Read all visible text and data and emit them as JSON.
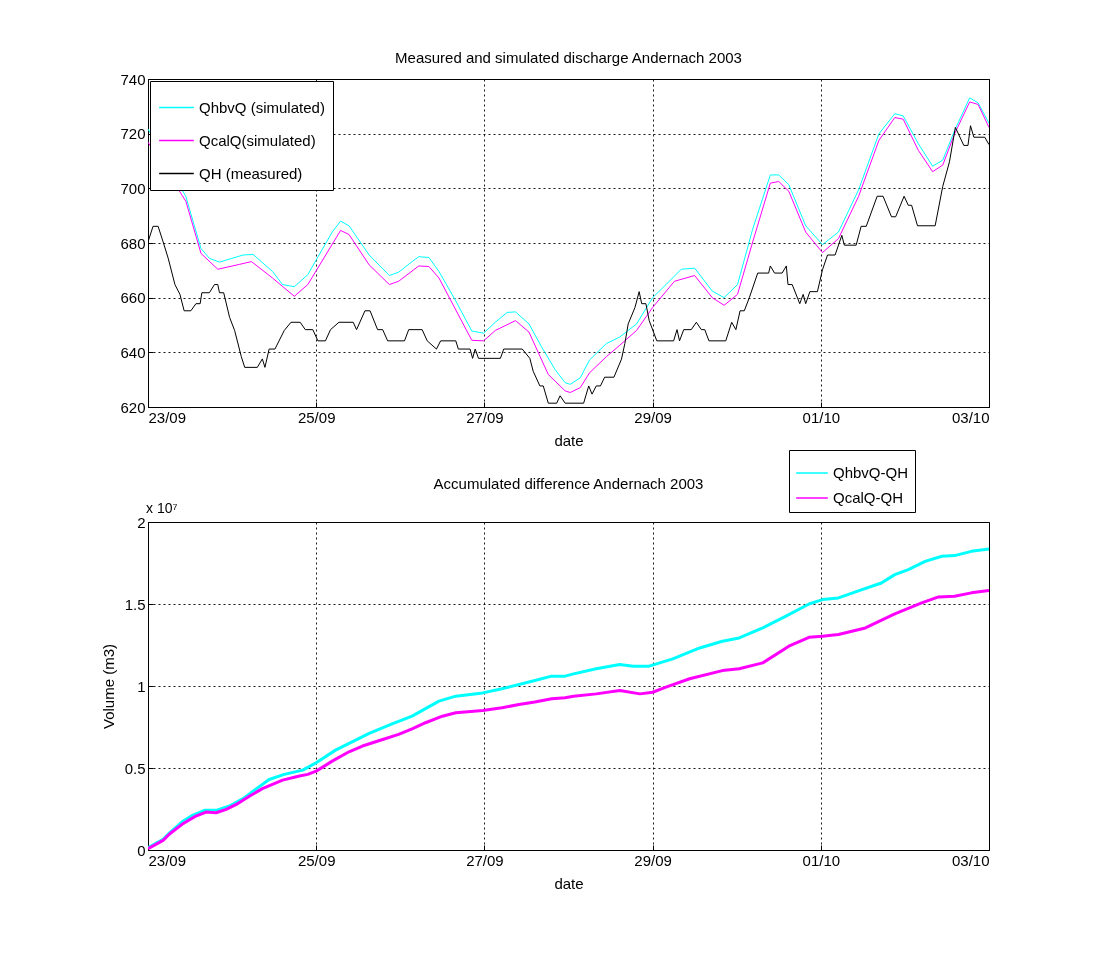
{
  "chart_data": [
    {
      "type": "line",
      "title": "Measured and simulated discharge Andernach 2003",
      "xlabel": "date",
      "xlim": [
        "2003-09-23",
        "2003-10-03"
      ],
      "xticks": [
        {
          "value": "2003-09-23",
          "label": "23/09"
        },
        {
          "value": "2003-09-25",
          "label": "25/09"
        },
        {
          "value": "2003-09-27",
          "label": "27/09"
        },
        {
          "value": "2003-09-29",
          "label": "29/09"
        },
        {
          "value": "2003-10-01",
          "label": "01/10"
        },
        {
          "value": "2003-10-03",
          "label": "03/10"
        }
      ],
      "ylim": [
        620,
        740
      ],
      "yticks": [
        620,
        640,
        660,
        680,
        700,
        720,
        740
      ],
      "grid": true,
      "legend": "top left",
      "series": [
        {
          "name": "QhbvQ (simulated)",
          "color": "#00ffff",
          "x": [
            "2003-09-23T00:00",
            "2003-09-23T10:48",
            "2003-09-23T15:07",
            "2003-09-23T17:31",
            "2003-09-23T20:24",
            "2003-09-24T03:07",
            "2003-09-24T06:00",
            "2003-09-24T11:31",
            "2003-09-24T14:24",
            "2003-09-24T17:46",
            "2003-09-24T21:36",
            "2003-09-25T00:00",
            "2003-09-25T04:34",
            "2003-09-25T06:58",
            "2003-09-25T09:22",
            "2003-09-25T15:07",
            "2003-09-25T20:53",
            "2003-09-25T23:31",
            "2003-09-26T03:22",
            "2003-09-26T05:17",
            "2003-09-26T08:10",
            "2003-09-26T11:02",
            "2003-09-26T15:50",
            "2003-09-26T20:24",
            "2003-09-26T23:46",
            "2003-09-27T03:07",
            "2003-09-27T06:29",
            "2003-09-27T08:53",
            "2003-09-27T12:43",
            "2003-09-27T16:19",
            "2003-09-27T20:10",
            "2003-09-27T23:02",
            "2003-09-28T00:29",
            "2003-09-28T03:22",
            "2003-09-28T06:00",
            "2003-09-28T10:48",
            "2003-09-28T14:38",
            "2003-09-28T19:26",
            "2003-09-29T00:00",
            "2003-09-29T03:50",
            "2003-09-29T08:10",
            "2003-09-29T12:00",
            "2003-09-29T17:02",
            "2003-09-29T20:24",
            "2003-09-30T00:14",
            "2003-09-30T04:34",
            "2003-09-30T09:36",
            "2003-09-30T12:00",
            "2003-09-30T14:53",
            "2003-09-30T19:41",
            "2003-10-01T00:29",
            "2003-10-01T05:02",
            "2003-10-01T10:48",
            "2003-10-01T16:34",
            "2003-10-01T21:07",
            "2003-10-01T23:31",
            "2003-10-02T03:50",
            "2003-10-02T07:55",
            "2003-10-02T10:48",
            "2003-10-02T14:10",
            "2003-10-02T18:29",
            "2003-10-02T20:53",
            "2003-10-03T00:00"
          ],
          "values": [
            721.7,
            697,
            678,
            674.4,
            673,
            675.6,
            675.8,
            669.6,
            664.8,
            664,
            668.4,
            673.8,
            684,
            688,
            686.3,
            675.6,
            668.1,
            669.3,
            673.2,
            675,
            674.7,
            669.6,
            658.8,
            647.8,
            647,
            651,
            654.6,
            654.8,
            650.4,
            642,
            633.7,
            628.9,
            628.3,
            630.7,
            637.2,
            643.2,
            645.6,
            650.4,
            660,
            664.8,
            670.4,
            670.8,
            662.4,
            660,
            664.8,
            685.1,
            704.9,
            704.9,
            701.3,
            686.3,
            679.4,
            684,
            699.5,
            719.9,
            727.3,
            726.5,
            716.3,
            708.1,
            710.3,
            721.1,
            733.1,
            731.3,
            723.8
          ]
        },
        {
          "name": "QcalQ(simulated)",
          "color": "#ff00ff",
          "x": [
            "2003-09-23T00:00",
            "2003-09-23T10:48",
            "2003-09-23T15:07",
            "2003-09-23T19:55",
            "2003-09-24T02:10",
            "2003-09-24T05:31",
            "2003-09-24T11:31",
            "2003-09-24T17:46",
            "2003-09-24T21:36",
            "2003-09-25T06:58",
            "2003-09-25T09:22",
            "2003-09-25T15:07",
            "2003-09-25T20:53",
            "2003-09-25T23:31",
            "2003-09-26T05:17",
            "2003-09-26T08:10",
            "2003-09-26T11:02",
            "2003-09-26T20:24",
            "2003-09-26T23:46",
            "2003-09-27T03:07",
            "2003-09-27T08:53",
            "2003-09-27T12:43",
            "2003-09-27T18:14",
            "2003-09-27T23:02",
            "2003-09-28T00:29",
            "2003-09-28T03:22",
            "2003-09-28T06:00",
            "2003-09-28T10:48",
            "2003-09-28T14:38",
            "2003-09-28T19:26",
            "2003-09-29T00:00",
            "2003-09-29T06:14",
            "2003-09-29T12:00",
            "2003-09-29T17:02",
            "2003-09-29T20:24",
            "2003-09-30T00:14",
            "2003-09-30T04:34",
            "2003-09-30T09:36",
            "2003-09-30T12:00",
            "2003-09-30T14:53",
            "2003-09-30T19:41",
            "2003-10-01T00:29",
            "2003-10-01T05:02",
            "2003-10-01T10:48",
            "2003-10-01T16:34",
            "2003-10-01T21:07",
            "2003-10-01T23:31",
            "2003-10-02T03:50",
            "2003-10-02T07:55",
            "2003-10-02T10:48",
            "2003-10-02T14:10",
            "2003-10-02T18:29",
            "2003-10-02T20:53",
            "2003-10-03T00:00"
          ],
          "values": [
            716.9,
            695.3,
            676.2,
            670.4,
            672.2,
            673.2,
            667.2,
            660.5,
            664.8,
            684.6,
            683.1,
            672,
            664.8,
            666,
            671.6,
            671.4,
            667.2,
            644.4,
            644.2,
            648,
            651.6,
            647.4,
            631.9,
            625.9,
            625.3,
            627.1,
            632.5,
            638.4,
            642.6,
            648,
            656.4,
            666,
            668.1,
            660,
            657.2,
            661.2,
            680.4,
            701.9,
            702.5,
            698.9,
            684,
            676.5,
            681.6,
            697.1,
            717.5,
            725.9,
            725.3,
            713.9,
            706.1,
            708.5,
            719.9,
            731.6,
            730.7,
            722.3
          ]
        },
        {
          "name": "QH (measured)",
          "color": "#000000",
          "x": [
            "2003-09-23T00:00",
            "2003-09-23T01:26",
            "2003-09-23T02:53",
            "2003-09-23T04:19",
            "2003-09-23T05:46",
            "2003-09-23T07:41",
            "2003-09-23T09:07",
            "2003-09-23T10:19",
            "2003-09-23T12:14",
            "2003-09-23T13:41",
            "2003-09-23T14:53",
            "2003-09-23T15:22",
            "2003-09-23T17:31",
            "2003-09-23T18:58",
            "2003-09-23T19:55",
            "2003-09-23T20:24",
            "2003-09-23T21:36",
            "2003-09-23T23:17",
            "2003-09-24T00:43",
            "2003-09-24T02:38",
            "2003-09-24T03:36",
            "2003-09-24T07:12",
            "2003-09-24T08:38",
            "2003-09-24T09:22",
            "2003-09-24T10:34",
            "2003-09-24T12:14",
            "2003-09-24T14:53",
            "2003-09-24T16:48",
            "2003-09-24T19:26",
            "2003-09-24T20:53",
            "2003-09-24T23:02",
            "2003-09-25T00:29",
            "2003-09-25T02:38",
            "2003-09-25T04:05",
            "2003-09-25T06:29",
            "2003-09-25T10:34",
            "2003-09-25T11:31",
            "2003-09-25T13:55",
            "2003-09-25T15:22",
            "2003-09-25T17:31",
            "2003-09-25T18:58",
            "2003-09-25T20:24",
            "2003-09-26T01:12",
            "2003-09-26T02:24",
            "2003-09-26T06:14",
            "2003-09-26T07:41",
            "2003-09-26T10:19",
            "2003-09-26T11:31",
            "2003-09-26T15:50",
            "2003-09-26T16:34",
            "2003-09-26T19:55",
            "2003-09-26T20:38",
            "2003-09-26T21:22",
            "2003-09-26T22:19",
            "2003-09-27T04:34",
            "2003-09-27T05:31",
            "2003-09-27T10:48",
            "2003-09-27T12:58",
            "2003-09-27T13:55",
            "2003-09-27T15:50",
            "2003-09-27T16:48",
            "2003-09-27T18:14",
            "2003-09-27T20:38",
            "2003-09-27T21:36",
            "2003-09-27T23:02",
            "2003-09-28T04:19",
            "2003-09-28T05:46",
            "2003-09-28T06:43",
            "2003-09-28T07:55",
            "2003-09-28T09:07",
            "2003-09-28T10:19",
            "2003-09-28T12:58",
            "2003-09-28T15:07",
            "2003-09-28T16:05",
            "2003-09-28T17:02",
            "2003-09-28T18:58",
            "2003-09-28T20:10",
            "2003-09-28T20:53",
            "2003-09-28T22:05",
            "2003-09-28T23:02",
            "2003-09-29T01:12",
            "2003-09-29T06:00",
            "2003-09-29T06:58",
            "2003-09-29T07:41",
            "2003-09-29T08:53",
            "2003-09-29T11:02",
            "2003-09-29T12:29",
            "2003-09-29T13:55",
            "2003-09-29T14:53",
            "2003-09-29T16:05",
            "2003-09-29T20:53",
            "2003-09-29T22:34",
            "2003-09-29T23:46",
            "2003-09-30T00:58",
            "2003-09-30T02:10",
            "2003-09-30T03:36",
            "2003-09-30T06:00",
            "2003-09-30T09:07",
            "2003-09-30T09:36",
            "2003-09-30T10:48",
            "2003-09-30T12:58",
            "2003-09-30T14:10",
            "2003-09-30T14:38",
            "2003-09-30T15:50",
            "2003-09-30T18:00",
            "2003-09-30T18:58",
            "2003-09-30T19:41",
            "2003-09-30T20:53",
            "2003-09-30T23:02",
            "2003-10-01T00:29",
            "2003-10-01T01:55",
            "2003-10-01T04:05",
            "2003-10-01T06:00",
            "2003-10-01T06:43",
            "2003-10-01T10:05",
            "2003-10-01T11:31",
            "2003-10-01T12:58",
            "2003-10-01T16:05",
            "2003-10-01T17:46",
            "2003-10-01T20:10",
            "2003-10-01T21:22",
            "2003-10-01T23:46",
            "2003-10-02T00:58",
            "2003-10-02T01:55",
            "2003-10-02T03:36",
            "2003-10-02T08:38",
            "2003-10-02T10:48",
            "2003-10-02T12:43",
            "2003-10-02T14:24",
            "2003-10-02T16:48",
            "2003-10-02T18:00",
            "2003-10-02T18:43",
            "2003-10-02T19:41",
            "2003-10-02T22:48",
            "2003-10-03T00:00"
          ],
          "values": [
            680.4,
            686.1,
            686.1,
            680.4,
            674.4,
            664.8,
            661.2,
            655.2,
            655.2,
            657.8,
            657.8,
            661.8,
            661.8,
            664.8,
            664.8,
            661.8,
            661.8,
            652.8,
            648,
            638.4,
            634.5,
            634.5,
            637.6,
            634.5,
            641.2,
            641.2,
            648,
            651,
            651,
            648.3,
            648.3,
            644.2,
            644.2,
            648.3,
            651,
            651,
            648.3,
            655.2,
            655.2,
            648.3,
            648.3,
            644.2,
            644.2,
            648.3,
            648.3,
            644.2,
            641.2,
            644.2,
            644.2,
            641.2,
            641.2,
            637.8,
            641.2,
            637.8,
            637.8,
            641.2,
            641.2,
            637.8,
            633.1,
            627.7,
            627.7,
            621.4,
            621.4,
            624.1,
            621.4,
            621.4,
            627.7,
            624.7,
            627.7,
            627.7,
            630.9,
            630.9,
            637.5,
            643.2,
            650.4,
            656.4,
            662.2,
            657.8,
            657.8,
            651.6,
            644.2,
            644.2,
            648.3,
            644.2,
            648.3,
            648.3,
            651,
            648.3,
            648.3,
            644.2,
            644.2,
            651,
            648.3,
            655.2,
            655.2,
            660,
            669,
            669,
            671.6,
            669,
            669,
            671.6,
            664.8,
            664.8,
            657.8,
            661.2,
            657.8,
            662.2,
            662.2,
            670.2,
            675.6,
            675.6,
            682.8,
            679.2,
            679.2,
            686.1,
            686.1,
            697.1,
            697.1,
            689.6,
            689.6,
            697.1,
            693.8,
            693.8,
            686.3,
            686.3,
            700.7,
            709.7,
            722.3,
            715.7,
            715.7,
            722.9,
            718.7,
            718.7,
            716
          ]
        }
      ]
    },
    {
      "type": "line",
      "title": "Accumulated difference Andernach 2003",
      "xlabel": "date",
      "ylabel": "Volume (m3)",
      "annotations": [
        "x 10⁷"
      ],
      "xlim": [
        "2003-09-23",
        "2003-10-03"
      ],
      "xticks": [
        {
          "value": "2003-09-23",
          "label": "23/09"
        },
        {
          "value": "2003-09-25",
          "label": "25/09"
        },
        {
          "value": "2003-09-27",
          "label": "27/09"
        },
        {
          "value": "2003-09-29",
          "label": "29/09"
        },
        {
          "value": "2003-10-01",
          "label": "01/10"
        },
        {
          "value": "2003-10-03",
          "label": "03/10"
        }
      ],
      "ylim": [
        0,
        2
      ],
      "yticks": [
        0,
        0.5,
        1,
        1.5,
        2
      ],
      "grid": true,
      "legend": "top right",
      "series": [
        {
          "name": "QhbvQ-QH",
          "color": "#00ffff",
          "x": [
            "2003-09-23T00:00",
            "2003-09-23T04:19",
            "2003-09-23T06:14",
            "2003-09-23T10:05",
            "2003-09-23T12:43",
            "2003-09-23T16:05",
            "2003-09-23T19:26",
            "2003-09-23T23:17",
            "2003-09-24T03:07",
            "2003-09-24T06:00",
            "2003-09-24T10:34",
            "2003-09-24T14:53",
            "2003-09-24T20:10",
            "2003-09-25T00:00",
            "2003-09-25T05:31",
            "2003-09-25T15:07",
            "2003-09-25T21:50",
            "2003-09-26T03:22",
            "2003-09-26T11:02",
            "2003-09-26T15:50",
            "2003-09-26T23:31",
            "2003-09-27T05:02",
            "2003-09-27T14:24",
            "2003-09-27T19:12",
            "2003-09-27T23:02",
            "2003-09-28T01:26",
            "2003-09-28T07:55",
            "2003-09-28T14:38",
            "2003-09-28T18:29",
            "2003-09-28T23:02",
            "2003-09-29T05:46",
            "2003-09-29T13:26",
            "2003-09-29T19:55",
            "2003-09-30T00:43",
            "2003-09-30T07:26",
            "2003-09-30T13:55",
            "2003-09-30T20:38",
            "2003-10-01T00:29",
            "2003-10-01T05:02",
            "2003-10-01T11:46",
            "2003-10-01T17:17",
            "2003-10-01T21:07",
            "2003-10-02T00:58",
            "2003-10-02T05:46",
            "2003-10-02T10:34",
            "2003-10-02T14:10",
            "2003-10-02T18:58",
            "2003-10-03T00:00"
          ],
          "values": [
            0.014,
            0.065,
            0.106,
            0.177,
            0.211,
            0.242,
            0.242,
            0.268,
            0.313,
            0.359,
            0.43,
            0.461,
            0.487,
            0.532,
            0.609,
            0.711,
            0.77,
            0.816,
            0.908,
            0.938,
            0.958,
            0.983,
            1.034,
            1.06,
            1.06,
            1.074,
            1.105,
            1.131,
            1.121,
            1.121,
            1.165,
            1.232,
            1.273,
            1.293,
            1.354,
            1.425,
            1.5,
            1.527,
            1.537,
            1.588,
            1.628,
            1.679,
            1.71,
            1.76,
            1.791,
            1.795,
            1.821,
            1.836
          ]
        },
        {
          "name": "QcalQ-QH",
          "color": "#ff00ff",
          "x": [
            "2003-09-23T00:00",
            "2003-09-23T04:19",
            "2003-09-23T06:14",
            "2003-09-23T10:05",
            "2003-09-23T13:41",
            "2003-09-23T16:34",
            "2003-09-23T19:26",
            "2003-09-23T22:19",
            "2003-09-24T01:12",
            "2003-09-24T05:02",
            "2003-09-24T08:38",
            "2003-09-24T14:24",
            "2003-09-24T19:12",
            "2003-09-24T21:36",
            "2003-09-25T00:00",
            "2003-09-25T04:34",
            "2003-09-25T09:22",
            "2003-09-25T13:12",
            "2003-09-25T18:58",
            "2003-09-25T23:31",
            "2003-09-26T03:22",
            "2003-09-26T07:12",
            "2003-09-26T12:00",
            "2003-09-26T15:50",
            "2003-09-26T23:31",
            "2003-09-27T05:02",
            "2003-09-27T09:50",
            "2003-09-27T14:24",
            "2003-09-27T19:12",
            "2003-09-27T23:02",
            "2003-09-28T01:26",
            "2003-09-28T07:55",
            "2003-09-28T14:38",
            "2003-09-28T20:24",
            "2003-09-29T00:00",
            "2003-09-29T03:50",
            "2003-09-29T10:34",
            "2003-09-29T19:55",
            "2003-09-30T00:43",
            "2003-09-30T07:26",
            "2003-09-30T14:53",
            "2003-09-30T20:38",
            "2003-10-01T00:29",
            "2003-10-01T05:02",
            "2003-10-01T12:43",
            "2003-10-01T21:07",
            "2003-10-02T04:48",
            "2003-10-02T09:36",
            "2003-10-02T14:10",
            "2003-10-02T18:58",
            "2003-10-03T00:00"
          ],
          "values": [
            0.008,
            0.059,
            0.099,
            0.162,
            0.207,
            0.231,
            0.227,
            0.248,
            0.278,
            0.329,
            0.374,
            0.426,
            0.451,
            0.461,
            0.481,
            0.542,
            0.599,
            0.634,
            0.674,
            0.705,
            0.739,
            0.776,
            0.816,
            0.837,
            0.851,
            0.867,
            0.887,
            0.902,
            0.922,
            0.928,
            0.938,
            0.952,
            0.973,
            0.952,
            0.962,
            0.993,
            1.044,
            1.094,
            1.105,
            1.141,
            1.243,
            1.297,
            1.304,
            1.314,
            1.354,
            1.44,
            1.507,
            1.543,
            1.547,
            1.568,
            1.582
          ]
        }
      ]
    }
  ]
}
